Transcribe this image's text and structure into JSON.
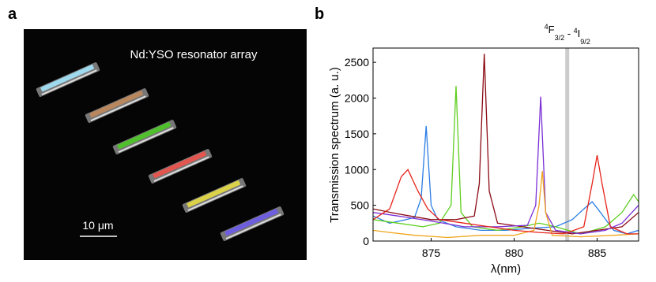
{
  "panel_a": {
    "label": "a",
    "title": "Nd:YSO resonator array",
    "scale_bar": "10 μm"
  },
  "chart_data": {
    "type": "line",
    "panel_label": "b",
    "xlabel": "λ(nm)",
    "ylabel": "Transmission spectrum (a. u.)",
    "xlim": [
      871.5,
      887.5
    ],
    "ylim": [
      0,
      2700
    ],
    "xticks": [
      875,
      880,
      885
    ],
    "yticks": [
      0,
      500,
      1000,
      1500,
      2000,
      2500
    ],
    "grid": false,
    "annotation": {
      "x": 883.2,
      "color": "#cccccc",
      "parts": [
        "4",
        "F",
        "3/2",
        " - ",
        "4",
        "I",
        "9/2"
      ]
    },
    "series": [
      {
        "color": "#2b7de3",
        "x": [
          871.5,
          872.5,
          873.5,
          874.0,
          874.4,
          874.7,
          875.0,
          875.4,
          876.5,
          878,
          879.5,
          881,
          882.5,
          883.5,
          884.2,
          884.7,
          885.2,
          886,
          886.8,
          887.5
        ],
        "values": [
          350,
          250,
          300,
          330,
          600,
          1610,
          500,
          300,
          200,
          150,
          150,
          180,
          200,
          300,
          450,
          550,
          400,
          150,
          100,
          150
        ]
      },
      {
        "color": "#5ecf1e",
        "x": [
          871.5,
          873,
          874.5,
          875.5,
          876.2,
          876.5,
          876.8,
          877.5,
          879,
          880.5,
          881.5,
          882.5,
          884,
          885.5,
          886.5,
          887.2,
          887.5
        ],
        "values": [
          300,
          250,
          200,
          250,
          500,
          2170,
          400,
          200,
          150,
          200,
          250,
          200,
          100,
          200,
          400,
          650,
          550
        ]
      },
      {
        "color": "#8b0a14",
        "x": [
          871.5,
          873,
          875,
          876.5,
          877.6,
          877.9,
          878.2,
          878.5,
          879,
          880.5,
          882,
          883.5,
          885,
          886.5,
          887.5
        ],
        "values": [
          450,
          380,
          300,
          300,
          350,
          800,
          2620,
          700,
          250,
          200,
          150,
          100,
          150,
          200,
          400
        ]
      },
      {
        "color": "#7a2fd6",
        "x": [
          871.5,
          873,
          875,
          877,
          879,
          880.8,
          881.3,
          881.6,
          881.9,
          882.5,
          884,
          885.5,
          886.5,
          887.5
        ],
        "values": [
          400,
          350,
          280,
          200,
          200,
          220,
          500,
          2020,
          400,
          150,
          100,
          150,
          250,
          500
        ]
      },
      {
        "color": "#f0a51c",
        "x": [
          871.5,
          872.5,
          874,
          876,
          878,
          880,
          881.2,
          881.5,
          881.7,
          881.9,
          882.3,
          884,
          886,
          887.5
        ],
        "values": [
          150,
          120,
          80,
          50,
          80,
          80,
          150,
          500,
          980,
          400,
          80,
          60,
          80,
          100
        ]
      },
      {
        "color": "#e8231a",
        "x": [
          871.5,
          872.5,
          873.2,
          873.6,
          874.2,
          874.8,
          875.5,
          877,
          878.5,
          880,
          881.5,
          883,
          884.2,
          884.7,
          885,
          885.3,
          885.8,
          886.8,
          887.5
        ],
        "values": [
          300,
          450,
          900,
          1000,
          700,
          450,
          300,
          250,
          200,
          150,
          120,
          100,
          200,
          800,
          1200,
          800,
          200,
          100,
          100
        ]
      }
    ]
  }
}
